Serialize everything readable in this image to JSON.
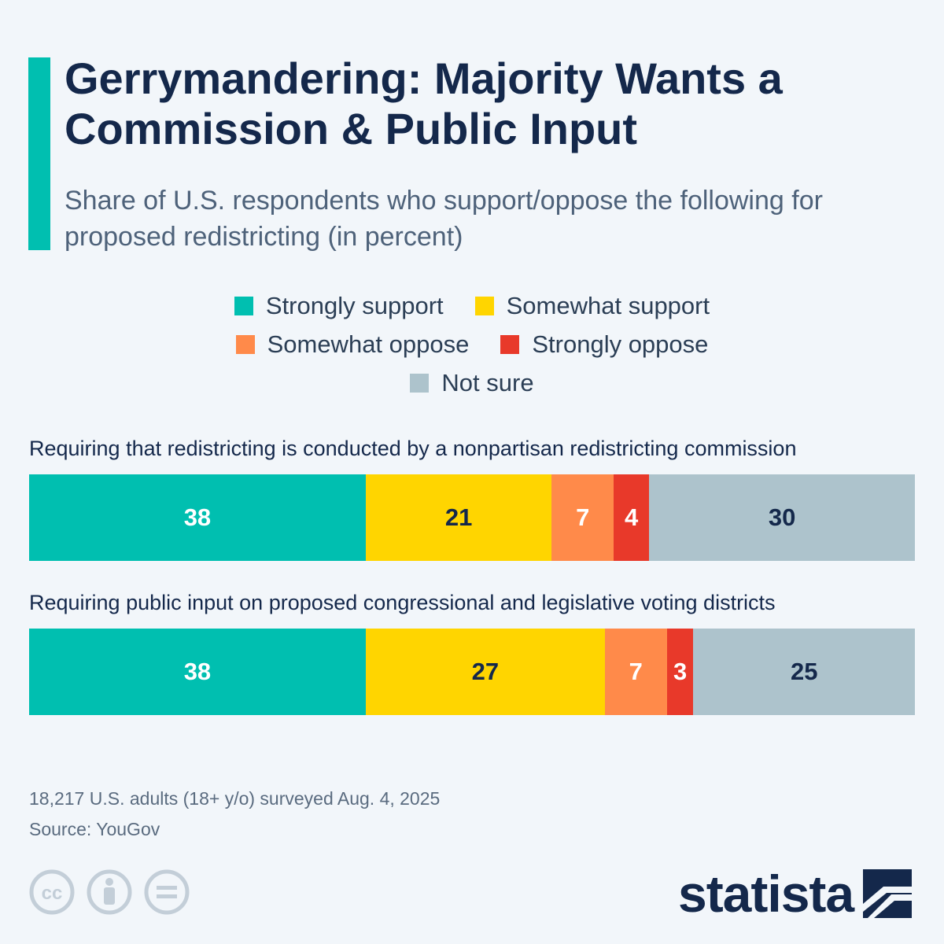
{
  "header": {
    "title": "Gerrymandering: Majority Wants a Commission & Public Input",
    "subtitle": "Share of U.S. respondents who support/oppose the following for proposed redistricting (in percent)"
  },
  "colors": {
    "accent": "#00bfb0",
    "strongly_support": "#00bfb0",
    "somewhat_support": "#ffd500",
    "somewhat_oppose": "#ff8a4a",
    "strongly_oppose": "#e8392a",
    "not_sure": "#adc3cc",
    "text_dark": "#14284b"
  },
  "chart_data": {
    "type": "bar",
    "stacked": true,
    "orientation": "horizontal",
    "title": "Gerrymandering: Majority Wants a Commission & Public Input",
    "subtitle": "Share of U.S. respondents who support/oppose the following for proposed redistricting (in percent)",
    "legend_placement": "top-center",
    "categories": [
      "Requiring that redistricting is conducted by a nonpartisan redistricting commission",
      "Requiring public input on proposed congressional and legislative voting districts"
    ],
    "series": [
      {
        "name": "Strongly support",
        "color": "#00bfb0",
        "label_color": "#ffffff",
        "values": [
          38,
          38
        ]
      },
      {
        "name": "Somewhat support",
        "color": "#ffd500",
        "label_color": "#14284b",
        "values": [
          21,
          27
        ]
      },
      {
        "name": "Somewhat oppose",
        "color": "#ff8a4a",
        "label_color": "#ffffff",
        "values": [
          7,
          7
        ]
      },
      {
        "name": "Strongly oppose",
        "color": "#e8392a",
        "label_color": "#ffffff",
        "values": [
          4,
          3
        ]
      },
      {
        "name": "Not sure",
        "color": "#adc3cc",
        "label_color": "#14284b",
        "values": [
          30,
          25
        ]
      }
    ]
  },
  "footer": {
    "note": "18,217 U.S. adults (18+ y/o) surveyed Aug. 4, 2025",
    "source": "Source: YouGov",
    "brand": "statista",
    "license_icons": [
      "cc-icon",
      "attribution-icon",
      "no-derivatives-icon"
    ]
  }
}
